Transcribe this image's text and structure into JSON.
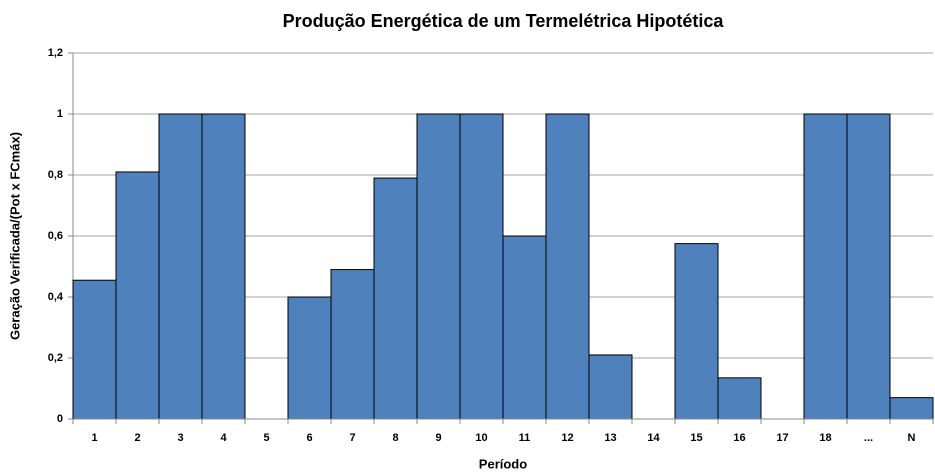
{
  "chart_data": {
    "type": "bar",
    "title": "Produção Energética de um Termelétrica Hipotética",
    "x_label": "Período",
    "y_label": "Geração Verificada/(Pot x FCmáx)",
    "categories": [
      "1",
      "2",
      "3",
      "4",
      "5",
      "6",
      "7",
      "8",
      "9",
      "10",
      "11",
      "12",
      "13",
      "14",
      "15",
      "16",
      "17",
      "18",
      "...",
      "N"
    ],
    "values": [
      0.455,
      0.81,
      1,
      1,
      0,
      0.4,
      0.49,
      0.79,
      1,
      1,
      0.6,
      1,
      0.21,
      0,
      0.575,
      0.135,
      0,
      1,
      1,
      0.07
    ],
    "color": "#4f81bd",
    "ylim": [
      0,
      1.2
    ],
    "yticks": [
      0,
      {
        "value": 0.2,
        "label": "0,2"
      },
      {
        "value": 0.4,
        "label": "0,4"
      },
      {
        "value": 0.6,
        "label": "0,6"
      },
      {
        "value": 0.8,
        "label": "0,8"
      },
      1,
      {
        "value": 1.2,
        "label": "1,2"
      }
    ],
    "grid": true
  }
}
